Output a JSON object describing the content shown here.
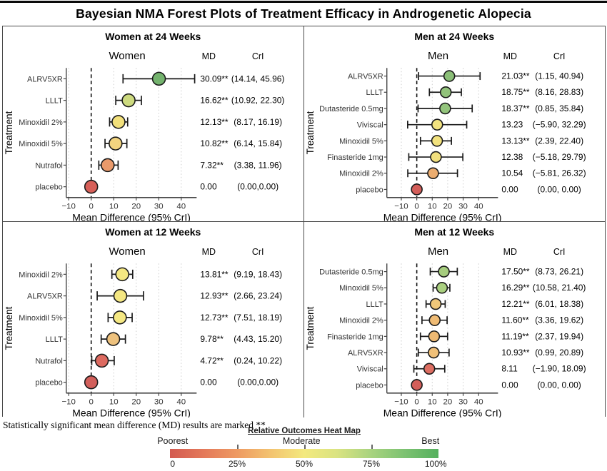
{
  "figure": {
    "title": "Bayesian NMA Forest Plots of Treatment Efficacy in Androgenetic Alopecia",
    "footnote": "Statistically significant mean difference (MD) results are marked **"
  },
  "heatmap": {
    "title": "Relative Outcomes Heat Map",
    "label_poorest": "Poorest",
    "label_moderate": "Moderate",
    "label_best": "Best",
    "scale_ticks": [
      "0",
      "25%",
      "50%",
      "75%",
      "100%"
    ],
    "gradient": [
      "#d35a50",
      "#e4795a",
      "#ee9a62",
      "#f3c370",
      "#f3e97e",
      "#d9e381",
      "#a8d37f",
      "#7cc271",
      "#55b05e"
    ]
  },
  "chart_data": [
    {
      "type": "forest",
      "title": "Women at 24 Weeks",
      "group_header": "Women",
      "md_header": "MD",
      "cri_header": "CrI",
      "xlabel": "Mean Difference (95% CrI)",
      "ylabel": "Treatment",
      "x_ticks": [
        -10,
        0,
        10,
        20,
        30,
        40
      ],
      "zero_line": 0,
      "gutter": "narrow",
      "rows": [
        {
          "label": "ALRV5XR",
          "md": 30.09,
          "ci": [
            14.14,
            45.96
          ],
          "md_text": "30.09**",
          "cri_text": "(14.14, 45.96)",
          "color": "#74b36e"
        },
        {
          "label": "LLLT",
          "md": 16.62,
          "ci": [
            10.92,
            22.3
          ],
          "md_text": "16.62**",
          "cri_text": "(10.92, 22.30)",
          "color": "#cdda7f"
        },
        {
          "label": "Minoxidil 2%",
          "md": 12.13,
          "ci": [
            8.17,
            16.19
          ],
          "md_text": "12.13**",
          "cri_text": "(8.17, 16.19)",
          "color": "#f2e07b"
        },
        {
          "label": "Minoxidil 5%",
          "md": 10.82,
          "ci": [
            6.14,
            15.84
          ],
          "md_text": "10.82**",
          "cri_text": "(6.14, 15.84)",
          "color": "#f2d47f"
        },
        {
          "label": "Nutrafol",
          "md": 7.32,
          "ci": [
            3.38,
            11.96
          ],
          "md_text": "7.32**",
          "cri_text": "(3.38, 11.96)",
          "color": "#ea9a6b"
        },
        {
          "label": "placebo",
          "md": 0.0,
          "ci": [
            0,
            0
          ],
          "md_text": "0.00",
          "cri_text": "(0.00,0.00)",
          "color": "#d75f58"
        }
      ]
    },
    {
      "type": "forest",
      "title": "Men at 24 Weeks",
      "group_header": "Men",
      "md_header": "MD",
      "cri_header": "CrI",
      "xlabel": "Mean Difference (95% CrI)",
      "ylabel": "Treatment",
      "x_ticks": [
        -10,
        0,
        10,
        20,
        30,
        40
      ],
      "zero_line": 0,
      "gutter": "wide",
      "rows": [
        {
          "label": "ALRV5XR",
          "md": 21.03,
          "ci": [
            1.15,
            40.94
          ],
          "md_text": "21.03**",
          "cri_text": "(1.15, 40.94)",
          "color": "#8bbf78"
        },
        {
          "label": "LLLT",
          "md": 18.75,
          "ci": [
            8.16,
            28.83
          ],
          "md_text": "18.75**",
          "cri_text": "(8.16, 28.83)",
          "color": "#92c37b"
        },
        {
          "label": "Dutasteride 0.5mg",
          "md": 18.37,
          "ci": [
            0.85,
            35.84
          ],
          "md_text": "18.37**",
          "cri_text": "(0.85, 35.84)",
          "color": "#93c47c"
        },
        {
          "label": "Viviscal",
          "md": 13.23,
          "ci": [
            -5.9,
            32.29
          ],
          "md_text": "13.23",
          "cri_text": "(−5.90, 32.29)",
          "color": "#f2e380"
        },
        {
          "label": "Minoxidil 5%",
          "md": 13.13,
          "ci": [
            2.39,
            22.4
          ],
          "md_text": "13.13**",
          "cri_text": "(2.39, 22.40)",
          "color": "#f2e27e"
        },
        {
          "label": "Finasteride 1mg",
          "md": 12.38,
          "ci": [
            -5.18,
            29.79
          ],
          "md_text": "12.38",
          "cri_text": "(−5.18, 29.79)",
          "color": "#f1df7d"
        },
        {
          "label": "Minoxidil 2%",
          "md": 10.54,
          "ci": [
            -5.81,
            26.32
          ],
          "md_text": "10.54",
          "cri_text": "(−5.81, 26.32)",
          "color": "#ecad70"
        },
        {
          "label": "placebo",
          "md": 0.0,
          "ci": [
            0,
            0
          ],
          "md_text": "0.00",
          "cri_text": "(0.00, 0.00)",
          "color": "#d35d59"
        }
      ]
    },
    {
      "type": "forest",
      "title": "Women at 12 Weeks",
      "group_header": "Women",
      "md_header": "MD",
      "cri_header": "CrI",
      "xlabel": "Mean Difference (95% CrI)",
      "ylabel": "Treatment",
      "x_ticks": [
        -10,
        0,
        10,
        20,
        30,
        40
      ],
      "zero_line": 0,
      "gutter": "narrow",
      "rows": [
        {
          "label": "Minoxidil 2%",
          "md": 13.81,
          "ci": [
            9.19,
            18.43
          ],
          "md_text": "13.81**",
          "cri_text": "(9.19, 18.43)",
          "color": "#f4e782"
        },
        {
          "label": "ALRV5XR",
          "md": 12.93,
          "ci": [
            2.66,
            23.24
          ],
          "md_text": "12.93**",
          "cri_text": "(2.66, 23.24)",
          "color": "#f4e782"
        },
        {
          "label": "Minoxidil 5%",
          "md": 12.73,
          "ci": [
            7.51,
            18.19
          ],
          "md_text": "12.73**",
          "cri_text": "(7.51, 18.19)",
          "color": "#f5e883"
        },
        {
          "label": "LLLT",
          "md": 9.78,
          "ci": [
            4.43,
            15.2
          ],
          "md_text": "9.78**",
          "cri_text": "(4.43, 15.20)",
          "color": "#eec27e"
        },
        {
          "label": "Nutrafol",
          "md": 4.72,
          "ci": [
            0.24,
            10.22
          ],
          "md_text": "4.72**",
          "cri_text": "(0.24, 10.22)",
          "color": "#dd6a60"
        },
        {
          "label": "placebo",
          "md": 0.0,
          "ci": [
            0,
            0
          ],
          "md_text": "0.00",
          "cri_text": "(0.00,0.00)",
          "color": "#d25f5b"
        }
      ]
    },
    {
      "type": "forest",
      "title": "Men at 12 Weeks",
      "group_header": "Men",
      "md_header": "MD",
      "cri_header": "CrI",
      "xlabel": "Mean Difference (95% CrI)",
      "ylabel": "Treatment",
      "x_ticks": [
        -10,
        0,
        10,
        20,
        30,
        40
      ],
      "zero_line": 0,
      "gutter": "wide",
      "rows": [
        {
          "label": "Dutasteride 0.5mg",
          "md": 17.5,
          "ci": [
            8.73,
            26.21
          ],
          "md_text": "17.50**",
          "cri_text": "(8.73, 26.21)",
          "color": "#a6cd7e"
        },
        {
          "label": "Minoxidil 5%",
          "md": 16.29,
          "ci": [
            10.58,
            21.4
          ],
          "md_text": "16.29**",
          "cri_text": "(10.58, 21.40)",
          "color": "#aad080"
        },
        {
          "label": "LLLT",
          "md": 12.21,
          "ci": [
            6.01,
            18.38
          ],
          "md_text": "12.21**",
          "cri_text": "(6.01, 18.38)",
          "color": "#f0c87a"
        },
        {
          "label": "Minoxidil 2%",
          "md": 11.6,
          "ci": [
            3.36,
            19.62
          ],
          "md_text": "11.60**",
          "cri_text": "(3.36, 19.62)",
          "color": "#efbb74"
        },
        {
          "label": "Finasteride 1mg",
          "md": 11.19,
          "ci": [
            2.37,
            19.94
          ],
          "md_text": "11.19**",
          "cri_text": "(2.37, 19.94)",
          "color": "#efba73"
        },
        {
          "label": "ALRV5XR",
          "md": 10.93,
          "ci": [
            0.99,
            20.89
          ],
          "md_text": "10.93**",
          "cri_text": "(0.99, 20.89)",
          "color": "#f0c078"
        },
        {
          "label": "Viviscal",
          "md": 8.11,
          "ci": [
            -1.9,
            18.09
          ],
          "md_text": "8.11",
          "cri_text": "(−1.90, 18.09)",
          "color": "#dd6e62"
        },
        {
          "label": "placebo",
          "md": 0.0,
          "ci": [
            0,
            0
          ],
          "md_text": "0.00",
          "cri_text": "(0.00, 0.00)",
          "color": "#d45f5a"
        }
      ]
    }
  ]
}
